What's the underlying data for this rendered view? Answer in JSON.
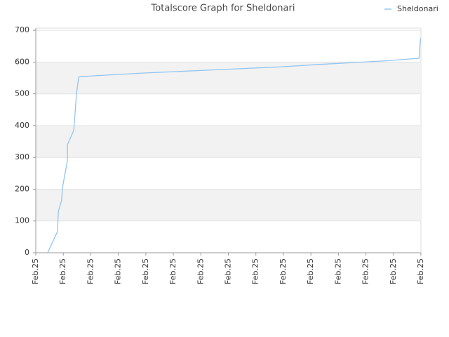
{
  "chart_data": {
    "type": "line",
    "title": "Totalscore Graph for Sheldonari",
    "x": [
      0.43,
      0.79,
      0.82,
      0.94,
      0.97,
      1.15,
      1.15,
      1.38,
      1.48,
      1.56,
      1.76,
      2.78,
      3.8,
      5.08,
      6.35,
      7.63,
      8.9,
      10.18,
      11.45,
      12.73,
      13.93,
      13.98,
      14
    ],
    "series": [
      {
        "name": "Sheldonari",
        "color": "#92c5f0",
        "values": [
          0,
          67,
          130,
          165,
          205,
          290,
          340,
          385,
          500,
          553,
          555,
          560,
          565,
          570,
          575,
          580,
          585,
          592,
          598,
          604,
          612,
          672,
          675
        ]
      }
    ],
    "xlim": [
      0,
      14
    ],
    "xticks": [
      {
        "value": 0,
        "label": "Feb.25"
      },
      {
        "value": 1,
        "label": "Feb.25"
      },
      {
        "value": 2,
        "label": "Feb.25"
      },
      {
        "value": 3,
        "label": "Feb.25"
      },
      {
        "value": 4,
        "label": "Feb.25"
      },
      {
        "value": 5,
        "label": "Feb.25"
      },
      {
        "value": 6,
        "label": "Feb.25"
      },
      {
        "value": 7,
        "label": "Feb.25"
      },
      {
        "value": 8,
        "label": "Feb.25"
      },
      {
        "value": 9,
        "label": "Feb.25"
      },
      {
        "value": 10,
        "label": "Feb.25"
      },
      {
        "value": 11,
        "label": "Feb.25"
      },
      {
        "value": 12,
        "label": "Feb.25"
      },
      {
        "value": 13,
        "label": "Feb.25"
      },
      {
        "value": 14,
        "label": "Feb.25"
      }
    ],
    "ylim": [
      0,
      707
    ],
    "yticks": [
      0,
      100,
      200,
      300,
      400,
      500,
      600,
      700
    ],
    "grid": true,
    "legend": "top-right"
  }
}
